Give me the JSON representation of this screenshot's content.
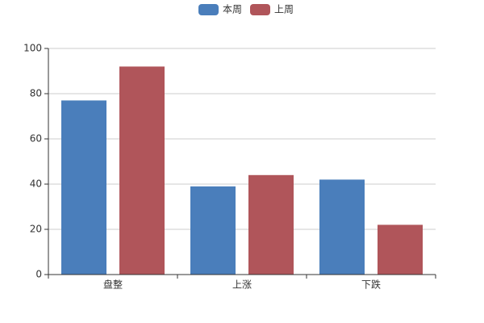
{
  "chart_data": {
    "type": "bar",
    "categories": [
      "盘整",
      "上涨",
      "下跌"
    ],
    "series": [
      {
        "name": "本周",
        "color": "#4a7ebb",
        "values": [
          77,
          39,
          42
        ]
      },
      {
        "name": "上周",
        "color": "#b0555a",
        "values": [
          92,
          44,
          22
        ]
      }
    ],
    "ylim": [
      0,
      100
    ],
    "yticks": [
      0,
      20,
      40,
      60,
      80,
      100
    ],
    "grid": true,
    "legend": "top"
  }
}
